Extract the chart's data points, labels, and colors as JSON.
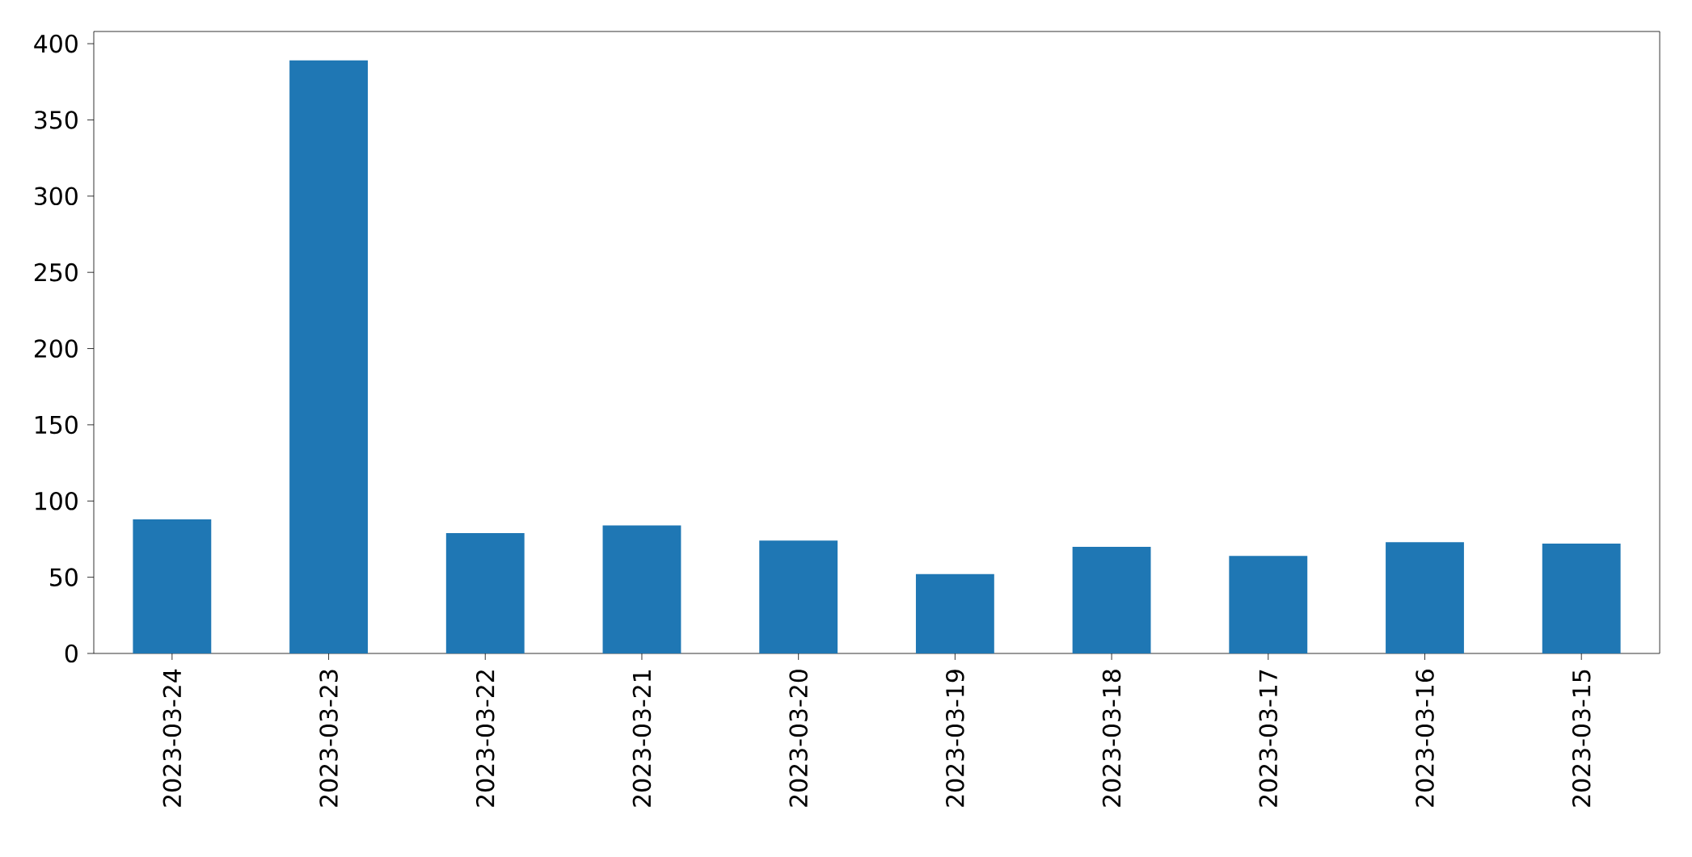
{
  "chart_data": {
    "type": "bar",
    "categories": [
      "2023-03-24",
      "2023-03-23",
      "2023-03-22",
      "2023-03-21",
      "2023-03-20",
      "2023-03-19",
      "2023-03-18",
      "2023-03-17",
      "2023-03-16",
      "2023-03-15"
    ],
    "values": [
      88,
      389,
      79,
      84,
      74,
      52,
      70,
      64,
      73,
      72
    ],
    "color": "#1f77b4",
    "ylim": [
      0,
      408
    ],
    "yticks": [
      0,
      50,
      100,
      150,
      200,
      250,
      300,
      350,
      400
    ]
  }
}
